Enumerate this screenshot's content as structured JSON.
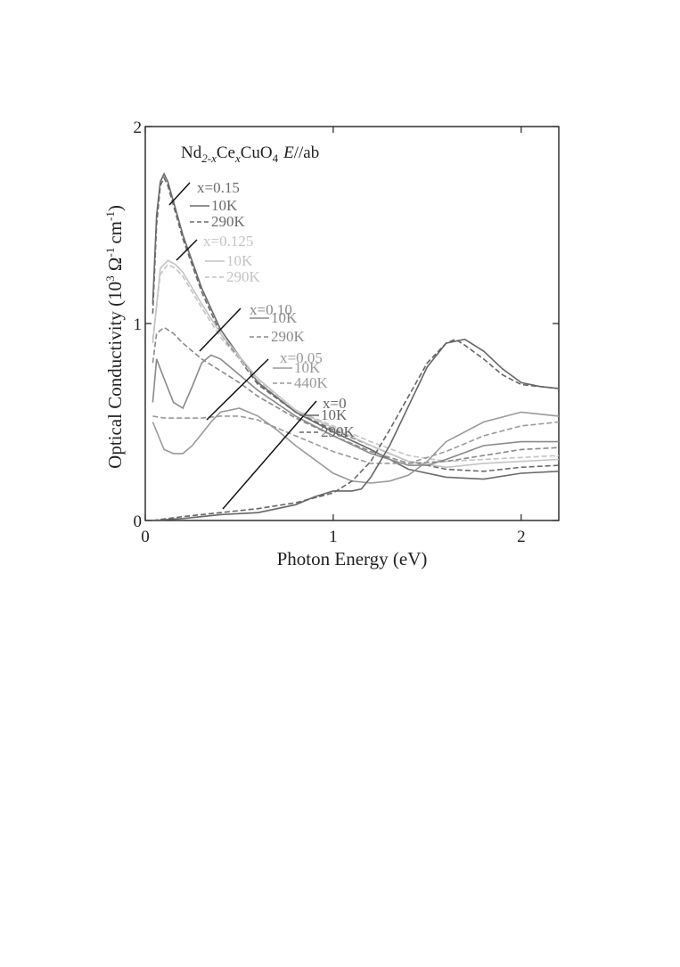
{
  "chart_data": {
    "type": "line",
    "title_parts": [
      "Nd",
      "2-x",
      "Ce",
      "x",
      "CuO",
      "4",
      "E",
      "//ab"
    ],
    "xlabel": "Photon Energy (eV)",
    "ylabel_parts": [
      "Optical Conductivity (10",
      "3",
      " Ω",
      "-1",
      "cm",
      "-1",
      ")"
    ],
    "xlim": [
      0,
      2.2
    ],
    "ylim": [
      0,
      2
    ],
    "xticks": [
      "0",
      "1",
      "2"
    ],
    "yticks": [
      "0",
      "1",
      "2"
    ],
    "grid": false,
    "groups": [
      {
        "x_label": "x=0.15",
        "color": "#6a6a6a",
        "labels": [
          "10K",
          "290K"
        ],
        "series": [
          {
            "name": "10K",
            "style": "solid",
            "x": [
              0.04,
              0.06,
              0.08,
              0.1,
              0.12,
              0.15,
              0.2,
              0.3,
              0.4,
              0.6,
              0.8,
              1.0,
              1.2,
              1.4,
              1.6,
              1.8,
              2.0,
              2.2
            ],
            "y": [
              1.1,
              1.55,
              1.72,
              1.76,
              1.72,
              1.62,
              1.45,
              1.18,
              0.97,
              0.7,
              0.55,
              0.45,
              0.36,
              0.26,
              0.22,
              0.21,
              0.24,
              0.25
            ]
          },
          {
            "name": "290K",
            "style": "dashed",
            "x": [
              0.04,
              0.06,
              0.08,
              0.1,
              0.12,
              0.15,
              0.2,
              0.3,
              0.4,
              0.6,
              0.8,
              1.0,
              1.2,
              1.4,
              1.6,
              1.8,
              2.0,
              2.2
            ],
            "y": [
              1.05,
              1.5,
              1.7,
              1.74,
              1.7,
              1.6,
              1.43,
              1.16,
              0.95,
              0.69,
              0.55,
              0.46,
              0.38,
              0.3,
              0.26,
              0.25,
              0.27,
              0.28
            ]
          }
        ]
      },
      {
        "x_label": "x=0.125",
        "color": "#c4c4c4",
        "labels": [
          "10K",
          "290K"
        ],
        "series": [
          {
            "name": "10K",
            "style": "solid",
            "x": [
              0.04,
              0.08,
              0.12,
              0.16,
              0.2,
              0.3,
              0.4,
              0.6,
              0.8,
              1.0,
              1.2,
              1.4,
              1.6,
              1.8,
              2.0,
              2.2
            ],
            "y": [
              0.9,
              1.28,
              1.32,
              1.3,
              1.26,
              1.1,
              0.95,
              0.72,
              0.56,
              0.47,
              0.38,
              0.3,
              0.27,
              0.29,
              0.3,
              0.31
            ]
          },
          {
            "name": "290K",
            "style": "dashed",
            "x": [
              0.04,
              0.08,
              0.12,
              0.16,
              0.2,
              0.3,
              0.4,
              0.6,
              0.8,
              1.0,
              1.2,
              1.4,
              1.6,
              1.8,
              2.0,
              2.2
            ],
            "y": [
              0.92,
              1.25,
              1.3,
              1.28,
              1.24,
              1.08,
              0.93,
              0.71,
              0.56,
              0.48,
              0.4,
              0.33,
              0.3,
              0.31,
              0.32,
              0.33
            ]
          }
        ]
      },
      {
        "x_label": "x=0.10",
        "color": "#8a8a8a",
        "labels": [
          "10K",
          "290K"
        ],
        "series": [
          {
            "name": "10K",
            "style": "solid",
            "x": [
              0.04,
              0.06,
              0.1,
              0.15,
              0.2,
              0.25,
              0.3,
              0.35,
              0.4,
              0.5,
              0.6,
              0.8,
              1.0,
              1.2,
              1.4,
              1.5,
              1.6,
              1.8,
              2.0,
              2.2
            ],
            "y": [
              0.6,
              0.82,
              0.72,
              0.6,
              0.57,
              0.68,
              0.8,
              0.84,
              0.82,
              0.74,
              0.66,
              0.53,
              0.43,
              0.34,
              0.28,
              0.28,
              0.31,
              0.38,
              0.4,
              0.4
            ]
          },
          {
            "name": "290K",
            "style": "dashed",
            "x": [
              0.04,
              0.06,
              0.1,
              0.15,
              0.2,
              0.3,
              0.4,
              0.5,
              0.6,
              0.8,
              1.0,
              1.2,
              1.4,
              1.6,
              1.8,
              2.0,
              2.2
            ],
            "y": [
              0.8,
              0.95,
              0.98,
              0.95,
              0.9,
              0.82,
              0.76,
              0.7,
              0.63,
              0.52,
              0.43,
              0.35,
              0.29,
              0.3,
              0.33,
              0.36,
              0.37
            ]
          }
        ]
      },
      {
        "x_label": "x=0.05",
        "color": "#9a9a9a",
        "labels": [
          "10K",
          "440K"
        ],
        "series": [
          {
            "name": "10K",
            "style": "solid",
            "x": [
              0.04,
              0.1,
              0.15,
              0.2,
              0.25,
              0.3,
              0.35,
              0.4,
              0.5,
              0.6,
              0.7,
              0.8,
              1.0,
              1.1,
              1.2,
              1.3,
              1.4,
              1.5,
              1.6,
              1.8,
              2.0,
              2.2
            ],
            "y": [
              0.5,
              0.36,
              0.34,
              0.34,
              0.38,
              0.44,
              0.5,
              0.55,
              0.57,
              0.53,
              0.46,
              0.38,
              0.24,
              0.2,
              0.19,
              0.2,
              0.23,
              0.3,
              0.4,
              0.5,
              0.55,
              0.53
            ]
          },
          {
            "name": "440K",
            "style": "dashed",
            "x": [
              0.04,
              0.1,
              0.2,
              0.3,
              0.4,
              0.5,
              0.6,
              0.7,
              0.8,
              1.0,
              1.2,
              1.4,
              1.6,
              1.8,
              2.0,
              2.2
            ],
            "y": [
              0.53,
              0.52,
              0.52,
              0.52,
              0.53,
              0.53,
              0.51,
              0.47,
              0.43,
              0.35,
              0.29,
              0.29,
              0.35,
              0.43,
              0.48,
              0.5
            ]
          }
        ]
      },
      {
        "x_label": "x=0",
        "color": "#666666",
        "labels": [
          "10K",
          "290K"
        ],
        "series": [
          {
            "name": "10K",
            "style": "solid",
            "x": [
              0.04,
              0.2,
              0.4,
              0.6,
              0.8,
              0.9,
              1.0,
              1.05,
              1.1,
              1.15,
              1.2,
              1.3,
              1.4,
              1.5,
              1.6,
              1.7,
              1.8,
              1.9,
              2.0,
              2.1,
              2.2
            ],
            "y": [
              0.0,
              0.01,
              0.03,
              0.04,
              0.08,
              0.12,
              0.15,
              0.15,
              0.15,
              0.16,
              0.22,
              0.38,
              0.58,
              0.78,
              0.9,
              0.92,
              0.86,
              0.77,
              0.7,
              0.68,
              0.67
            ]
          },
          {
            "name": "290K",
            "style": "dashed",
            "x": [
              0.04,
              0.2,
              0.4,
              0.6,
              0.8,
              1.0,
              1.1,
              1.2,
              1.3,
              1.4,
              1.5,
              1.6,
              1.65,
              1.7,
              1.8,
              1.9,
              2.0,
              2.1,
              2.2
            ],
            "y": [
              0.0,
              0.02,
              0.04,
              0.06,
              0.09,
              0.14,
              0.2,
              0.3,
              0.46,
              0.63,
              0.8,
              0.9,
              0.92,
              0.89,
              0.82,
              0.74,
              0.69,
              0.68,
              0.67
            ]
          }
        ]
      }
    ]
  }
}
